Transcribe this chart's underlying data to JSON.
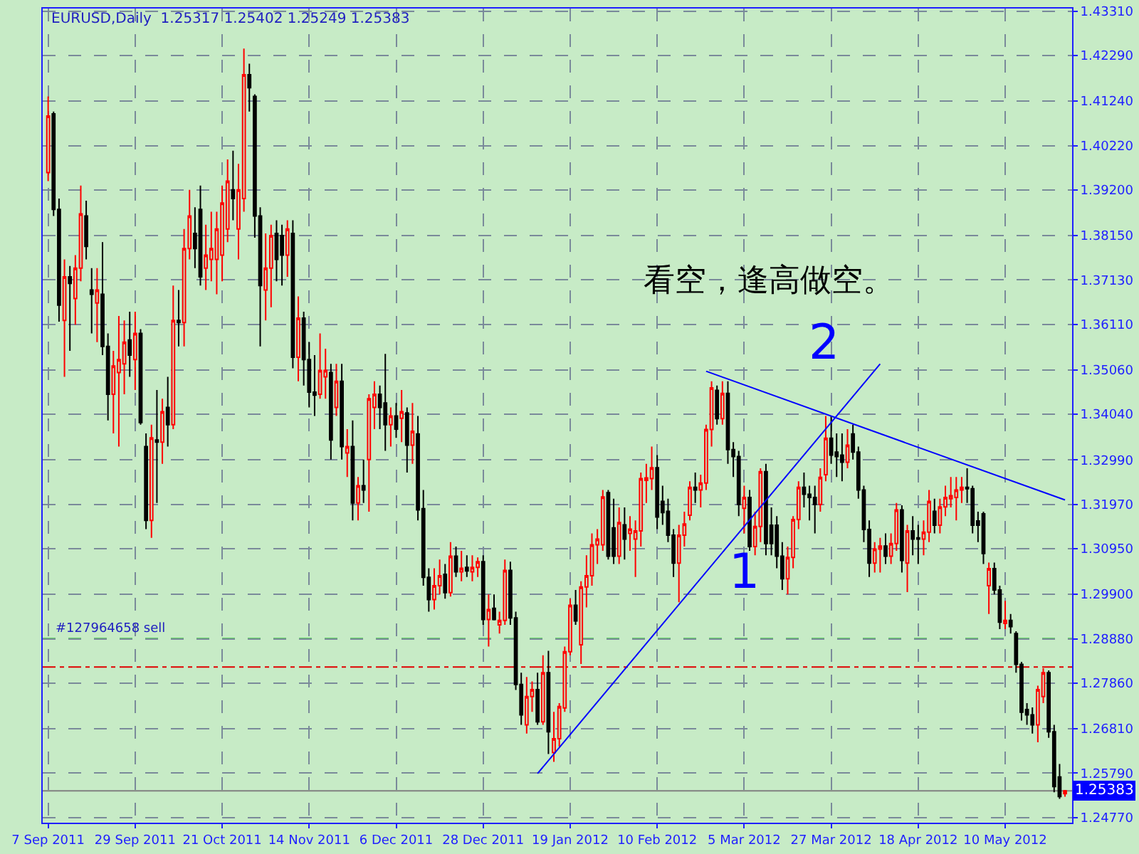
{
  "chart_data": {
    "type": "candlestick",
    "title": "EURUSD,Daily  1.25317 1.25402 1.25249 1.25383",
    "categories": [
      "7 Sep 2011",
      null,
      null,
      null,
      null,
      null,
      null,
      null,
      null,
      null,
      null,
      null,
      null,
      null,
      null,
      null,
      "29 Sep 2011",
      null,
      null,
      null,
      null,
      null,
      null,
      null,
      null,
      null,
      null,
      null,
      null,
      null,
      null,
      null,
      "21 Oct 2011",
      null,
      null,
      null,
      null,
      null,
      null,
      null,
      null,
      null,
      null,
      null,
      null,
      null,
      null,
      null,
      "14 Nov 2011",
      null,
      null,
      null,
      null,
      null,
      null,
      null,
      null,
      null,
      null,
      null,
      null,
      null,
      null,
      null,
      "6 Dec 2011",
      null,
      null,
      null,
      null,
      null,
      null,
      null,
      null,
      null,
      null,
      null,
      null,
      null,
      null,
      null,
      "28 Dec 2011",
      null,
      null,
      null,
      null,
      null,
      null,
      null,
      null,
      null,
      null,
      null,
      null,
      null,
      null,
      null,
      "19 Jan 2012",
      null,
      null,
      null,
      null,
      null,
      null,
      null,
      null,
      null,
      null,
      null,
      null,
      null,
      null,
      null,
      "10 Feb 2012",
      null,
      null,
      null,
      null,
      null,
      null,
      null,
      null,
      null,
      null,
      null,
      null,
      null,
      null,
      null,
      "5 Mar 2012",
      null,
      null,
      null,
      null,
      null,
      null,
      null,
      null,
      null,
      null,
      null,
      null,
      null,
      null,
      null,
      "27 Mar 2012",
      null,
      null,
      null,
      null,
      null,
      null,
      null,
      null,
      null,
      null,
      null,
      null,
      null,
      null,
      null,
      "18 Apr 2012",
      null,
      null,
      null,
      null,
      null,
      null,
      null,
      null,
      null,
      null,
      null,
      null,
      null,
      null,
      null,
      "10 May 2012",
      null,
      null,
      null,
      null,
      null,
      null,
      null,
      null,
      null,
      null,
      null
    ],
    "ohlc": [
      [
        1.396,
        1.4135,
        1.394,
        1.409
      ],
      [
        1.4095,
        1.41,
        1.386,
        1.3875
      ],
      [
        1.3875,
        1.39,
        1.3617,
        1.3655
      ],
      [
        1.362,
        1.376,
        1.349,
        1.372
      ],
      [
        1.372,
        1.3745,
        1.355,
        1.3705
      ],
      [
        1.367,
        1.377,
        1.361,
        1.374
      ],
      [
        1.374,
        1.393,
        1.371,
        1.3865
      ],
      [
        1.386,
        1.3895,
        1.376,
        1.379
      ],
      [
        1.369,
        1.374,
        1.359,
        1.368
      ],
      [
        1.366,
        1.374,
        1.357,
        1.369
      ],
      [
        1.368,
        1.38,
        1.354,
        1.356
      ],
      [
        1.356,
        1.359,
        1.339,
        1.345
      ],
      [
        1.345,
        1.355,
        1.336,
        1.3515
      ],
      [
        1.35,
        1.363,
        1.333,
        1.353
      ],
      [
        1.352,
        1.362,
        1.345,
        1.357
      ],
      [
        1.3575,
        1.364,
        1.349,
        1.354
      ],
      [
        1.353,
        1.364,
        1.346,
        1.359
      ],
      [
        1.359,
        1.36,
        1.338,
        1.3385
      ],
      [
        1.333,
        1.336,
        1.314,
        1.316
      ],
      [
        1.316,
        1.338,
        1.312,
        1.335
      ],
      [
        1.3345,
        1.346,
        1.32,
        1.334
      ],
      [
        1.334,
        1.344,
        1.329,
        1.341
      ],
      [
        1.342,
        1.349,
        1.333,
        1.338
      ],
      [
        1.338,
        1.37,
        1.337,
        1.362
      ],
      [
        1.362,
        1.369,
        1.356,
        1.3615
      ],
      [
        1.3615,
        1.383,
        1.356,
        1.3785
      ],
      [
        1.3785,
        1.392,
        1.376,
        1.386
      ],
      [
        1.382,
        1.388,
        1.374,
        1.3785
      ],
      [
        1.3875,
        1.393,
        1.37,
        1.372
      ],
      [
        1.374,
        1.384,
        1.369,
        1.377
      ],
      [
        1.376,
        1.387,
        1.371,
        1.3785
      ],
      [
        1.376,
        1.387,
        1.368,
        1.383
      ],
      [
        1.377,
        1.393,
        1.371,
        1.389
      ],
      [
        1.383,
        1.399,
        1.38,
        1.394
      ],
      [
        1.392,
        1.401,
        1.385,
        1.39
      ],
      [
        1.383,
        1.398,
        1.376,
        1.392
      ],
      [
        1.39,
        1.4245,
        1.387,
        1.4185
      ],
      [
        1.4185,
        1.421,
        1.41,
        1.4155
      ],
      [
        1.4135,
        1.414,
        1.381,
        1.386
      ],
      [
        1.386,
        1.388,
        1.356,
        1.37
      ],
      [
        1.369,
        1.382,
        1.362,
        1.374
      ],
      [
        1.374,
        1.384,
        1.365,
        1.3815
      ],
      [
        1.382,
        1.385,
        1.371,
        1.376
      ],
      [
        1.3815,
        1.384,
        1.37,
        1.377
      ],
      [
        1.377,
        1.385,
        1.372,
        1.383
      ],
      [
        1.382,
        1.385,
        1.351,
        1.3535
      ],
      [
        1.3535,
        1.3675,
        1.348,
        1.3625
      ],
      [
        1.3625,
        1.364,
        1.347,
        1.353
      ],
      [
        1.353,
        1.357,
        1.342,
        1.3455
      ],
      [
        1.3455,
        1.354,
        1.34,
        1.3448
      ],
      [
        1.345,
        1.359,
        1.344,
        1.3505
      ],
      [
        1.349,
        1.3555,
        1.344,
        1.3505
      ],
      [
        1.35,
        1.352,
        1.33,
        1.3345
      ],
      [
        1.342,
        1.352,
        1.34,
        1.348
      ],
      [
        1.348,
        1.352,
        1.33,
        1.333
      ],
      [
        1.3315,
        1.337,
        1.326,
        1.333
      ],
      [
        1.333,
        1.339,
        1.316,
        1.32
      ],
      [
        1.32,
        1.326,
        1.316,
        1.324
      ],
      [
        1.324,
        1.33,
        1.32,
        1.323
      ],
      [
        1.33,
        1.345,
        1.318,
        1.344
      ],
      [
        1.342,
        1.348,
        1.337,
        1.345
      ],
      [
        1.345,
        1.347,
        1.337,
        1.342
      ],
      [
        1.343,
        1.3543,
        1.332,
        1.338
      ],
      [
        1.338,
        1.342,
        1.333,
        1.34
      ],
      [
        1.34,
        1.343,
        1.335,
        1.337
      ],
      [
        1.3395,
        1.346,
        1.334,
        1.341
      ],
      [
        1.3407,
        1.342,
        1.327,
        1.3333
      ],
      [
        1.3333,
        1.343,
        1.329,
        1.3365
      ],
      [
        1.3359,
        1.34,
        1.316,
        1.3184
      ],
      [
        1.3187,
        1.323,
        1.301,
        1.3029
      ],
      [
        1.3029,
        1.305,
        1.295,
        1.2978
      ],
      [
        1.2978,
        1.305,
        1.2955,
        1.301
      ],
      [
        1.301,
        1.307,
        1.299,
        1.3033
      ],
      [
        1.3036,
        1.306,
        1.298,
        1.2994
      ],
      [
        1.2994,
        1.311,
        1.2985,
        1.3078
      ],
      [
        1.3078,
        1.31,
        1.303,
        1.3042
      ],
      [
        1.3042,
        1.309,
        1.302,
        1.305
      ],
      [
        1.3052,
        1.308,
        1.303,
        1.3044
      ],
      [
        1.3042,
        1.308,
        1.302,
        1.3052
      ],
      [
        1.3052,
        1.3075,
        1.303,
        1.3065
      ],
      [
        1.3065,
        1.308,
        1.292,
        1.2932
      ],
      [
        1.2932,
        1.299,
        1.287,
        1.2955
      ],
      [
        1.2958,
        1.299,
        1.293,
        1.2932
      ],
      [
        1.292,
        1.295,
        1.29,
        1.293
      ],
      [
        1.293,
        1.307,
        1.292,
        1.3045
      ],
      [
        1.3045,
        1.3065,
        1.292,
        1.2936
      ],
      [
        1.2936,
        1.295,
        1.277,
        1.2783
      ],
      [
        1.2783,
        1.281,
        1.269,
        1.2713
      ],
      [
        1.269,
        1.28,
        1.267,
        1.2755
      ],
      [
        1.2755,
        1.279,
        1.272,
        1.2771
      ],
      [
        1.2771,
        1.281,
        1.269,
        1.2697
      ],
      [
        1.2697,
        1.285,
        1.269,
        1.281
      ],
      [
        1.281,
        1.286,
        1.2623,
        1.2674
      ],
      [
        1.2626,
        1.272,
        1.2605,
        1.2658
      ],
      [
        1.2658,
        1.274,
        1.264,
        1.2732
      ],
      [
        1.2729,
        1.287,
        1.272,
        1.2858
      ],
      [
        1.2858,
        1.298,
        1.285,
        1.2965
      ],
      [
        1.2965,
        1.3,
        1.292,
        1.2929
      ],
      [
        1.2874,
        1.302,
        1.283,
        1.3007
      ],
      [
        1.3007,
        1.308,
        1.296,
        1.3033
      ],
      [
        1.3033,
        1.313,
        1.301,
        1.3104
      ],
      [
        1.3104,
        1.314,
        1.306,
        1.3117
      ],
      [
        1.3104,
        1.323,
        1.309,
        1.3214
      ],
      [
        1.3224,
        1.323,
        1.307,
        1.3078
      ],
      [
        1.3143,
        1.321,
        1.306,
        1.3078
      ],
      [
        1.3078,
        1.319,
        1.306,
        1.3155
      ],
      [
        1.315,
        1.319,
        1.307,
        1.3117
      ],
      [
        1.313,
        1.317,
        1.309,
        1.314
      ],
      [
        1.3117,
        1.316,
        1.303,
        1.3136
      ],
      [
        1.3136,
        1.327,
        1.31,
        1.3256
      ],
      [
        1.3252,
        1.329,
        1.32,
        1.3258
      ],
      [
        1.3256,
        1.333,
        1.323,
        1.3281
      ],
      [
        1.3281,
        1.331,
        1.314,
        1.3168
      ],
      [
        1.3204,
        1.324,
        1.315,
        1.3178
      ],
      [
        1.3181,
        1.321,
        1.311,
        1.3126
      ],
      [
        1.3126,
        1.314,
        1.303,
        1.3062
      ],
      [
        1.3062,
        1.315,
        1.2972,
        1.3126
      ],
      [
        1.3126,
        1.318,
        1.31,
        1.3152
      ],
      [
        1.3172,
        1.325,
        1.316,
        1.3236
      ],
      [
        1.3236,
        1.327,
        1.32,
        1.323
      ],
      [
        1.323,
        1.3265,
        1.319,
        1.3246
      ],
      [
        1.3246,
        1.338,
        1.323,
        1.3369
      ],
      [
        1.3369,
        1.348,
        1.333,
        1.3465
      ],
      [
        1.3459,
        1.347,
        1.338,
        1.3394
      ],
      [
        1.3394,
        1.348,
        1.338,
        1.3452
      ],
      [
        1.3452,
        1.348,
        1.329,
        1.3323
      ],
      [
        1.3323,
        1.334,
        1.326,
        1.3307
      ],
      [
        1.3307,
        1.332,
        1.317,
        1.3197
      ],
      [
        1.3188,
        1.324,
        1.313,
        1.3213
      ],
      [
        1.3213,
        1.323,
        1.309,
        1.31
      ],
      [
        1.31,
        1.318,
        1.308,
        1.3146
      ],
      [
        1.3146,
        1.328,
        1.311,
        1.3272
      ],
      [
        1.3272,
        1.329,
        1.308,
        1.3107
      ],
      [
        1.3149,
        1.319,
        1.308,
        1.3107
      ],
      [
        1.3149,
        1.317,
        1.305,
        1.3078
      ],
      [
        1.3078,
        1.311,
        1.3,
        1.3026
      ],
      [
        1.3026,
        1.31,
        1.299,
        1.3075
      ],
      [
        1.3075,
        1.317,
        1.305,
        1.3162
      ],
      [
        1.3162,
        1.325,
        1.314,
        1.3236
      ],
      [
        1.3236,
        1.327,
        1.319,
        1.322
      ],
      [
        1.322,
        1.324,
        1.316,
        1.3213
      ],
      [
        1.3213,
        1.324,
        1.313,
        1.3197
      ],
      [
        1.3197,
        1.328,
        1.318,
        1.3259
      ],
      [
        1.3265,
        1.34,
        1.325,
        1.3349
      ],
      [
        1.3349,
        1.34,
        1.329,
        1.331
      ],
      [
        1.3317,
        1.336,
        1.326,
        1.3307
      ],
      [
        1.331,
        1.336,
        1.325,
        1.3294
      ],
      [
        1.3294,
        1.337,
        1.328,
        1.3333
      ],
      [
        1.3359,
        1.338,
        1.33,
        1.3317
      ],
      [
        1.3317,
        1.333,
        1.321,
        1.323
      ],
      [
        1.323,
        1.324,
        1.311,
        1.3139
      ],
      [
        1.3139,
        1.316,
        1.303,
        1.3062
      ],
      [
        1.3062,
        1.311,
        1.304,
        1.3094
      ],
      [
        1.3094,
        1.312,
        1.304,
        1.3101
      ],
      [
        1.3101,
        1.313,
        1.306,
        1.3078
      ],
      [
        1.3078,
        1.313,
        1.306,
        1.3107
      ],
      [
        1.3107,
        1.32,
        1.309,
        1.3184
      ],
      [
        1.3184,
        1.3195,
        1.304,
        1.3068
      ],
      [
        1.3062,
        1.315,
        1.2995,
        1.3136
      ],
      [
        1.3136,
        1.317,
        1.308,
        1.3117
      ],
      [
        1.312,
        1.315,
        1.306,
        1.3117
      ],
      [
        1.3117,
        1.316,
        1.308,
        1.3133
      ],
      [
        1.3133,
        1.323,
        1.311,
        1.3204
      ],
      [
        1.3181,
        1.321,
        1.313,
        1.3149
      ],
      [
        1.3149,
        1.321,
        1.313,
        1.3191
      ],
      [
        1.3191,
        1.324,
        1.317,
        1.3213
      ],
      [
        1.321,
        1.326,
        1.319,
        1.3217
      ],
      [
        1.3213,
        1.326,
        1.316,
        1.323
      ],
      [
        1.323,
        1.326,
        1.32,
        1.3236
      ],
      [
        1.3236,
        1.328,
        1.32,
        1.3233
      ],
      [
        1.3233,
        1.324,
        1.313,
        1.3149
      ],
      [
        1.3159,
        1.318,
        1.311,
        1.3149
      ],
      [
        1.3175,
        1.318,
        1.306,
        1.3084
      ],
      [
        1.301,
        1.3063,
        1.2945,
        1.3049
      ],
      [
        1.3049,
        1.3063,
        1.299,
        1.3
      ],
      [
        1.3,
        1.301,
        1.291,
        1.2926
      ],
      [
        1.2923,
        1.2975,
        1.291,
        1.293
      ],
      [
        1.293,
        1.2945,
        1.29,
        1.2916
      ],
      [
        1.29,
        1.2905,
        1.281,
        1.2829
      ],
      [
        1.2829,
        1.2835,
        1.27,
        1.2719
      ],
      [
        1.2725,
        1.274,
        1.269,
        1.2713
      ],
      [
        1.2713,
        1.273,
        1.267,
        1.269
      ],
      [
        1.269,
        1.278,
        1.265,
        1.2771
      ],
      [
        1.2755,
        1.282,
        1.274,
        1.281
      ],
      [
        1.281,
        1.2815,
        1.266,
        1.2674
      ],
      [
        1.2674,
        1.269,
        1.2535,
        1.2548
      ],
      [
        1.257,
        1.26,
        1.252,
        1.2525
      ],
      [
        1.25317,
        1.25402,
        1.25249,
        1.25383
      ]
    ],
    "series": [
      {
        "type": "line",
        "color": "#0000ff",
        "values": [
          null,
          null,
          null,
          null,
          null,
          null,
          null,
          null,
          null,
          null,
          null,
          null,
          null,
          null,
          null,
          null,
          null,
          null,
          null,
          null,
          null,
          null,
          null,
          null,
          null,
          null,
          null,
          null,
          null,
          null,
          null,
          null,
          null,
          null,
          null,
          null,
          null,
          null,
          null,
          null,
          null,
          null,
          null,
          null,
          null,
          null,
          null,
          null,
          null,
          null,
          null,
          null,
          null,
          null,
          null,
          null,
          null,
          null,
          null,
          null,
          null,
          null,
          null,
          null,
          null,
          null,
          null,
          null,
          null,
          null,
          null,
          null,
          null,
          null,
          null,
          null,
          null,
          null,
          null,
          null,
          null,
          null,
          null,
          null,
          null,
          null,
          null,
          null,
          null,
          null,
          1.2578,
          null,
          null,
          null,
          null,
          null,
          null,
          null,
          null,
          null,
          null,
          null,
          null,
          null,
          null,
          null,
          null,
          null,
          null,
          null,
          null,
          null,
          null,
          null,
          null,
          null,
          null,
          null,
          null,
          null,
          null,
          null,
          null,
          null,
          null,
          null,
          null,
          null,
          null,
          null,
          null,
          null,
          null,
          null,
          null,
          null,
          null,
          null,
          null,
          null,
          null,
          null,
          null,
          null,
          null,
          null,
          null,
          null,
          null,
          null,
          null,
          null,
          null,
          1.352,
          null,
          null,
          null,
          null,
          null,
          null,
          null,
          null,
          null,
          null,
          null,
          null,
          null,
          null,
          null,
          null,
          null,
          null,
          null,
          null,
          null,
          null,
          null,
          null,
          null,
          null,
          null,
          null,
          null,
          null,
          null,
          null,
          null,
          null
        ]
      },
      {
        "type": "line",
        "color": "#0000ff",
        "values": [
          null,
          null,
          null,
          null,
          null,
          null,
          null,
          null,
          null,
          null,
          null,
          null,
          null,
          null,
          null,
          null,
          null,
          null,
          null,
          null,
          null,
          null,
          null,
          null,
          null,
          null,
          null,
          null,
          null,
          null,
          null,
          null,
          null,
          null,
          null,
          null,
          null,
          null,
          null,
          null,
          null,
          null,
          null,
          null,
          null,
          null,
          null,
          null,
          null,
          null,
          null,
          null,
          null,
          null,
          null,
          null,
          null,
          null,
          null,
          null,
          null,
          null,
          null,
          null,
          null,
          null,
          null,
          null,
          null,
          null,
          null,
          null,
          null,
          null,
          null,
          null,
          null,
          null,
          null,
          null,
          null,
          null,
          null,
          null,
          null,
          null,
          null,
          null,
          null,
          null,
          null,
          null,
          null,
          null,
          null,
          null,
          null,
          null,
          null,
          null,
          null,
          null,
          null,
          null,
          null,
          null,
          null,
          null,
          null,
          null,
          null,
          null,
          null,
          null,
          null,
          null,
          null,
          null,
          null,
          null,
          null,
          1.3503,
          null,
          null,
          null,
          null,
          null,
          null,
          null,
          null,
          null,
          null,
          null,
          null,
          null,
          null,
          null,
          null,
          null,
          null,
          null,
          null,
          null,
          null,
          null,
          null,
          null,
          null,
          null,
          null,
          null,
          null,
          null,
          null,
          null,
          null,
          null,
          null,
          null,
          null,
          null,
          null,
          null,
          null,
          null,
          null,
          null,
          null,
          null,
          null,
          null,
          null,
          null,
          null,
          null,
          null,
          null,
          null,
          null,
          null,
          null,
          null,
          null,
          null,
          null,
          null,
          null,
          1.3207
        ]
      }
    ],
    "ref_lines": [
      {
        "axis": "y",
        "value": 1.2888,
        "label": "#127964658 sell",
        "color": "#00c000",
        "line_style": "dashed"
      },
      {
        "axis": "y",
        "value": 1.2823,
        "color": "#e00000",
        "line_style": "dashdot"
      },
      {
        "axis": "y",
        "value": 1.25383,
        "label": "1.25383",
        "color": "#808080",
        "line_style": "solid"
      }
    ],
    "annotations": [
      "1",
      "2",
      "看空，逢高做空。"
    ],
    "ylim": [
      1.2465,
      1.4337
    ],
    "yticks": [
      {
        "value": 1.4331,
        "label": "1.43310"
      },
      {
        "value": 1.4229,
        "label": "1.42290"
      },
      {
        "value": 1.4124,
        "label": "1.41240"
      },
      {
        "value": 1.4022,
        "label": "1.40220"
      },
      {
        "value": 1.392,
        "label": "1.39200"
      },
      {
        "value": 1.3815,
        "label": "1.38150"
      },
      {
        "value": 1.3713,
        "label": "1.37130"
      },
      {
        "value": 1.3611,
        "label": "1.36110"
      },
      {
        "value": 1.3506,
        "label": "1.35060"
      },
      {
        "value": 1.3404,
        "label": "1.34040"
      },
      {
        "value": 1.3299,
        "label": "1.32990"
      },
      {
        "value": 1.3197,
        "label": "1.31970"
      },
      {
        "value": 1.3095,
        "label": "1.30950"
      },
      {
        "value": 1.299,
        "label": "1.29900"
      },
      {
        "value": 1.2888,
        "label": "1.28880"
      },
      {
        "value": 1.2786,
        "label": "1.27860"
      },
      {
        "value": 1.2681,
        "label": "1.26810"
      },
      {
        "value": 1.2579,
        "label": "1.25790"
      },
      {
        "value": 1.2477,
        "label": "1.24770"
      }
    ],
    "grid": true
  }
}
